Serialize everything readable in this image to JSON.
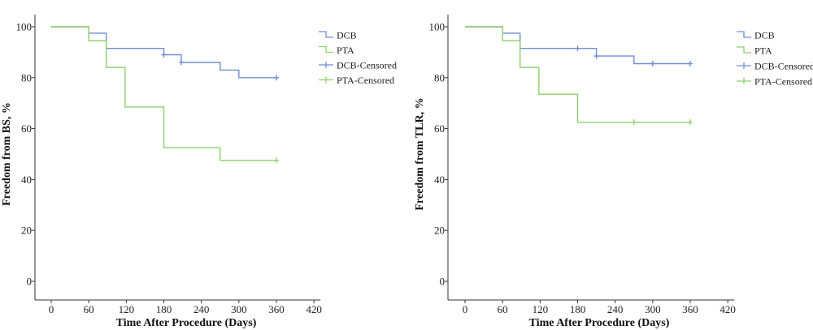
{
  "chart_data": [
    {
      "type": "line",
      "subtype": "kaplan-meier-step",
      "xlabel": "Time After Procedure (Days)",
      "ylabel": "Freedom from BS, %",
      "xlim": [
        0,
        420
      ],
      "ylim": [
        0,
        100
      ],
      "xticks": [
        "0",
        "60",
        "120",
        "180",
        "240",
        "300",
        "360",
        "420"
      ],
      "yticks": [
        "0",
        "20",
        "40",
        "60",
        "80",
        "100"
      ],
      "grid": false,
      "legend_position": "top-right",
      "legend": [
        "DCB",
        "PTA",
        "DCB-Censored",
        "PTA-Censored"
      ],
      "series": [
        {
          "name": "DCB",
          "color": "#6f8fd8",
          "steps": [
            [
              0,
              100
            ],
            [
              60,
              100
            ],
            [
              60,
              97.5
            ],
            [
              88,
              97.5
            ],
            [
              88,
              91.5
            ],
            [
              180,
              91.5
            ],
            [
              180,
              89
            ],
            [
              208,
              89
            ],
            [
              208,
              86
            ],
            [
              270,
              86
            ],
            [
              270,
              83
            ],
            [
              300,
              83
            ],
            [
              300,
              80
            ],
            [
              360,
              80
            ]
          ],
          "censored": [
            [
              180,
              89
            ],
            [
              208,
              86
            ],
            [
              360,
              80
            ]
          ]
        },
        {
          "name": "PTA",
          "color": "#8ed16a",
          "steps": [
            [
              0,
              100
            ],
            [
              60,
              100
            ],
            [
              60,
              94.5
            ],
            [
              88,
              94.5
            ],
            [
              88,
              84
            ],
            [
              118,
              84
            ],
            [
              118,
              68.5
            ],
            [
              180,
              68.5
            ],
            [
              180,
              52.5
            ],
            [
              270,
              52.5
            ],
            [
              270,
              47.5
            ],
            [
              360,
              47.5
            ]
          ],
          "censored": [
            [
              360,
              47.5
            ]
          ]
        }
      ]
    },
    {
      "type": "line",
      "subtype": "kaplan-meier-step",
      "xlabel": "Time After Procedure (Days)",
      "ylabel": "Freedom from TLR, %",
      "xlim": [
        0,
        420
      ],
      "ylim": [
        0,
        100
      ],
      "xticks": [
        "0",
        "60",
        "120",
        "180",
        "240",
        "300",
        "360",
        "420"
      ],
      "yticks": [
        "0",
        "20",
        "40",
        "60",
        "80",
        "100"
      ],
      "grid": false,
      "legend_position": "top-right",
      "legend": [
        "DCB",
        "PTA",
        "DCB-Censored",
        "PTA-Censored"
      ],
      "series": [
        {
          "name": "DCB",
          "color": "#6f8fd8",
          "steps": [
            [
              0,
              100
            ],
            [
              60,
              100
            ],
            [
              60,
              97.5
            ],
            [
              88,
              97.5
            ],
            [
              88,
              91.5
            ],
            [
              210,
              91.5
            ],
            [
              210,
              88.5
            ],
            [
              270,
              88.5
            ],
            [
              270,
              85.5
            ],
            [
              360,
              85.5
            ]
          ],
          "censored": [
            [
              180,
              91.5
            ],
            [
              210,
              88.5
            ],
            [
              300,
              85.5
            ],
            [
              360,
              85.5
            ]
          ]
        },
        {
          "name": "PTA",
          "color": "#8ed16a",
          "steps": [
            [
              0,
              100
            ],
            [
              60,
              100
            ],
            [
              60,
              94.5
            ],
            [
              88,
              94.5
            ],
            [
              88,
              84
            ],
            [
              118,
              84
            ],
            [
              118,
              73.5
            ],
            [
              180,
              73.5
            ],
            [
              180,
              62.5
            ],
            [
              360,
              62.5
            ]
          ],
          "censored": [
            [
              270,
              62.5
            ],
            [
              360,
              62.5
            ]
          ]
        }
      ]
    }
  ]
}
